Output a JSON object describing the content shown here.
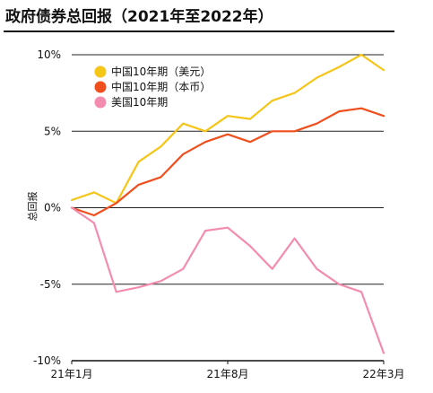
{
  "header": {
    "title": "政府债券总回报（2021年至2022年）"
  },
  "chart_data": {
    "type": "line",
    "title": "政府债券总回报（2021年至2022年）",
    "xlabel": "",
    "ylabel": "总回报",
    "x_ticks": [
      "21年1月",
      "21年8月",
      "22年3月"
    ],
    "y_ticks": [
      "10%",
      "5%",
      "0%",
      "-5%",
      "-10%"
    ],
    "ylim": [
      -10,
      10
    ],
    "y_unit": "%",
    "grid": "horizontal",
    "legend_position": "top-left",
    "x": [
      "2021-01",
      "2021-02",
      "2021-03",
      "2021-04",
      "2021-05",
      "2021-06",
      "2021-07",
      "2021-08",
      "2021-09",
      "2021-10",
      "2021-11",
      "2021-12",
      "2022-01",
      "2022-02",
      "2022-03"
    ],
    "series": [
      {
        "name": "中国10年期（美元）",
        "color": "#F5C518",
        "values": [
          0.5,
          1.0,
          0.3,
          3.0,
          4.0,
          5.5,
          5.0,
          6.0,
          5.8,
          7.0,
          7.5,
          8.5,
          9.2,
          10.0,
          9.0
        ]
      },
      {
        "name": "中国10年期（本币）",
        "color": "#F04E1C",
        "values": [
          0.0,
          -0.5,
          0.3,
          1.5,
          2.0,
          3.5,
          4.3,
          4.8,
          4.3,
          5.0,
          5.0,
          5.5,
          6.3,
          6.5,
          6.0
        ]
      },
      {
        "name": "美国10年期",
        "color": "#F48CB0",
        "values": [
          0.0,
          -1.0,
          -5.5,
          -5.2,
          -4.8,
          -4.0,
          -1.5,
          -1.3,
          -2.5,
          -4.0,
          -2.0,
          -4.0,
          -5.0,
          -5.5,
          -9.5
        ]
      }
    ]
  }
}
